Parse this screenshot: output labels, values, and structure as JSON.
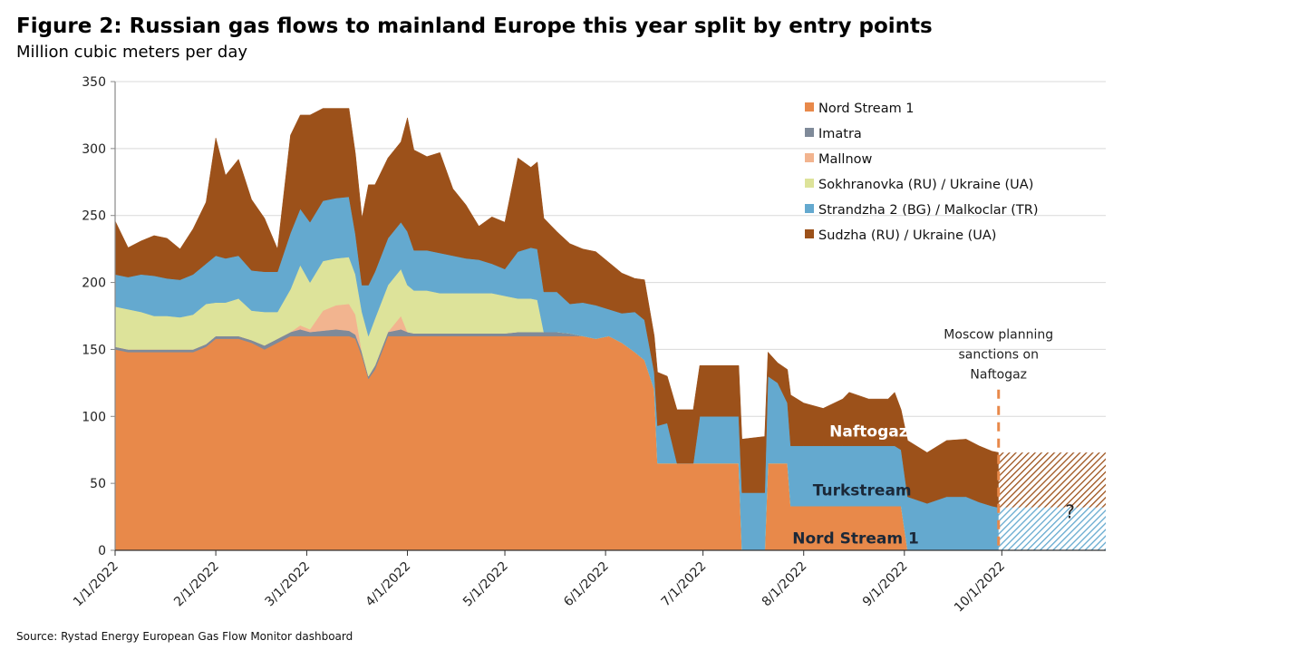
{
  "chart_data": {
    "type": "area",
    "stacked": true,
    "title": "Figure 2: Russian gas flows to mainland Europe this year split by entry points",
    "subtitle": "Million cubic meters per day",
    "ylabel": "Million cubic meters per day",
    "xlabel": "",
    "x_unit": "day of year 2022 (0 = 1/1/2022)",
    "xlim": [
      0,
      305
    ],
    "ylim": [
      0,
      350
    ],
    "yticks": [
      0,
      50,
      100,
      150,
      200,
      250,
      300,
      350
    ],
    "xticks": [
      {
        "day": 0,
        "label": "1/1/2022"
      },
      {
        "day": 31,
        "label": "2/1/2022"
      },
      {
        "day": 59,
        "label": "3/1/2022"
      },
      {
        "day": 90,
        "label": "4/1/2022"
      },
      {
        "day": 120,
        "label": "5/1/2022"
      },
      {
        "day": 151,
        "label": "6/1/2022"
      },
      {
        "day": 181,
        "label": "7/1/2022"
      },
      {
        "day": 212,
        "label": "8/1/2022"
      },
      {
        "day": 243,
        "label": "9/1/2022"
      },
      {
        "day": 273,
        "label": "10/1/2022"
      }
    ],
    "grid": true,
    "legend_position": "top-right",
    "x": [
      0,
      4,
      8,
      12,
      16,
      20,
      24,
      28,
      31,
      34,
      38,
      42,
      46,
      50,
      54,
      57,
      60,
      64,
      68,
      72,
      74,
      76,
      78,
      80,
      84,
      88,
      90,
      92,
      96,
      100,
      104,
      108,
      112,
      116,
      120,
      124,
      128,
      130,
      132,
      136,
      140,
      144,
      148,
      152,
      156,
      160,
      163,
      166,
      167,
      170,
      173,
      178,
      180,
      192,
      193,
      200,
      201,
      204,
      207,
      208,
      212,
      218,
      224,
      226,
      232,
      238,
      240,
      242,
      244,
      250,
      256,
      262,
      266,
      270,
      272
    ],
    "series": [
      {
        "name": "Nord Stream 1",
        "color": "#E8894A",
        "values": [
          150,
          148,
          148,
          148,
          148,
          148,
          148,
          152,
          158,
          158,
          158,
          155,
          150,
          155,
          160,
          160,
          160,
          160,
          160,
          160,
          158,
          145,
          128,
          135,
          160,
          160,
          160,
          160,
          160,
          160,
          160,
          160,
          160,
          160,
          160,
          160,
          160,
          160,
          160,
          160,
          160,
          160,
          158,
          160,
          155,
          148,
          142,
          120,
          65,
          65,
          65,
          65,
          65,
          65,
          0,
          0,
          65,
          65,
          65,
          33,
          33,
          33,
          33,
          33,
          33,
          33,
          33,
          33,
          0,
          0,
          0,
          0,
          0,
          0,
          0
        ]
      },
      {
        "name": "Imatra",
        "color": "#7F8A99",
        "values": [
          2,
          2,
          2,
          2,
          2,
          2,
          2,
          2,
          2,
          2,
          2,
          2,
          3,
          3,
          3,
          5,
          3,
          4,
          5,
          4,
          3,
          3,
          2,
          3,
          3,
          5,
          3,
          2,
          2,
          2,
          2,
          2,
          2,
          2,
          2,
          3,
          3,
          3,
          3,
          3,
          2,
          0,
          0,
          0,
          0,
          0,
          0,
          0,
          0,
          0,
          0,
          0,
          0,
          0,
          0,
          0,
          0,
          0,
          0,
          0,
          0,
          0,
          0,
          0,
          0,
          0,
          0,
          0,
          0,
          0,
          0,
          0,
          0,
          0,
          0
        ]
      },
      {
        "name": "Mallnow",
        "color": "#F2B48F",
        "values": [
          0,
          0,
          0,
          0,
          0,
          0,
          0,
          0,
          0,
          0,
          0,
          0,
          0,
          0,
          0,
          3,
          2,
          15,
          18,
          20,
          15,
          0,
          0,
          0,
          0,
          10,
          0,
          0,
          0,
          0,
          0,
          0,
          0,
          0,
          0,
          0,
          0,
          0,
          0,
          0,
          0,
          0,
          0,
          0,
          0,
          0,
          0,
          0,
          0,
          0,
          0,
          0,
          0,
          0,
          0,
          0,
          0,
          0,
          0,
          0,
          0,
          0,
          0,
          0,
          0,
          0,
          0,
          0,
          0,
          0,
          0,
          0,
          0,
          0,
          0
        ]
      },
      {
        "name": "Sokhranovka (RU) / Ukraine (UA)",
        "color": "#DDE39A",
        "values": [
          30,
          30,
          28,
          25,
          25,
          24,
          26,
          30,
          25,
          25,
          28,
          22,
          25,
          20,
          32,
          45,
          35,
          37,
          35,
          35,
          30,
          30,
          30,
          35,
          35,
          35,
          35,
          32,
          32,
          30,
          30,
          30,
          30,
          30,
          28,
          25,
          25,
          24,
          0,
          0,
          0,
          0,
          0,
          0,
          0,
          0,
          0,
          0,
          0,
          0,
          0,
          0,
          0,
          0,
          0,
          0,
          0,
          0,
          0,
          0,
          0,
          0,
          0,
          0,
          0,
          0,
          0,
          0,
          0,
          0,
          0,
          0,
          0,
          0,
          0
        ]
      },
      {
        "name": "Strandzha 2 (BG) / Malkoclar (TR)",
        "color": "#64A9CF",
        "values": [
          24,
          24,
          28,
          30,
          28,
          28,
          30,
          30,
          35,
          33,
          32,
          30,
          30,
          30,
          42,
          42,
          45,
          45,
          45,
          45,
          30,
          20,
          38,
          35,
          35,
          35,
          40,
          30,
          30,
          30,
          28,
          26,
          25,
          22,
          20,
          35,
          38,
          38,
          30,
          30,
          22,
          25,
          25,
          20,
          22,
          30,
          30,
          13,
          28,
          30,
          0,
          0,
          35,
          35,
          43,
          43,
          65,
          60,
          45,
          45,
          45,
          45,
          45,
          45,
          45,
          45,
          45,
          42,
          40,
          35,
          40,
          40,
          36,
          33,
          32
        ]
      },
      {
        "name": "Sudzha (RU) / Ukraine (UA)",
        "color": "#9C511A",
        "values": [
          40,
          22,
          25,
          30,
          30,
          23,
          34,
          46,
          88,
          62,
          72,
          53,
          40,
          17,
          73,
          70,
          80,
          69,
          67,
          66,
          60,
          50,
          75,
          65,
          60,
          60,
          85,
          75,
          70,
          75,
          50,
          40,
          25,
          35,
          35,
          70,
          60,
          65,
          55,
          45,
          45,
          40,
          40,
          35,
          30,
          25,
          30,
          27,
          40,
          35,
          40,
          40,
          38,
          38,
          40,
          42,
          18,
          15,
          25,
          38,
          32,
          28,
          35,
          40,
          35,
          35,
          40,
          30,
          42,
          38,
          42,
          43,
          42,
          41,
          41
        ]
      }
    ],
    "forecast": {
      "from_day": 272,
      "to_day": 305,
      "pattern": "hatched",
      "bands": [
        {
          "name": "Strandzha 2 (BG) / Malkoclar (TR)",
          "value": 32,
          "color": "#64A9CF"
        },
        {
          "name": "Sudzha (RU) / Ukraine (UA)",
          "value": 41,
          "color": "#9C511A"
        }
      ],
      "question_mark": "?"
    },
    "event_marker": {
      "day": 272,
      "from": 0,
      "to": 120,
      "color": "#E8894A",
      "style": "dashed",
      "label_lines": [
        "Moscow planning",
        "sanctions on",
        "Naftogaz"
      ]
    },
    "annotations": [
      {
        "text": "Naftogaz",
        "day": 232,
        "value": 89,
        "color": "#ffffff"
      },
      {
        "text": "Turkstream",
        "day": 230,
        "value": 45,
        "color": "#1b2838"
      },
      {
        "text": "Nord Stream 1",
        "day": 228,
        "value": 9,
        "color": "#1b2838"
      }
    ],
    "source": "Source: Rystad Energy European Gas Flow Monitor dashboard"
  }
}
